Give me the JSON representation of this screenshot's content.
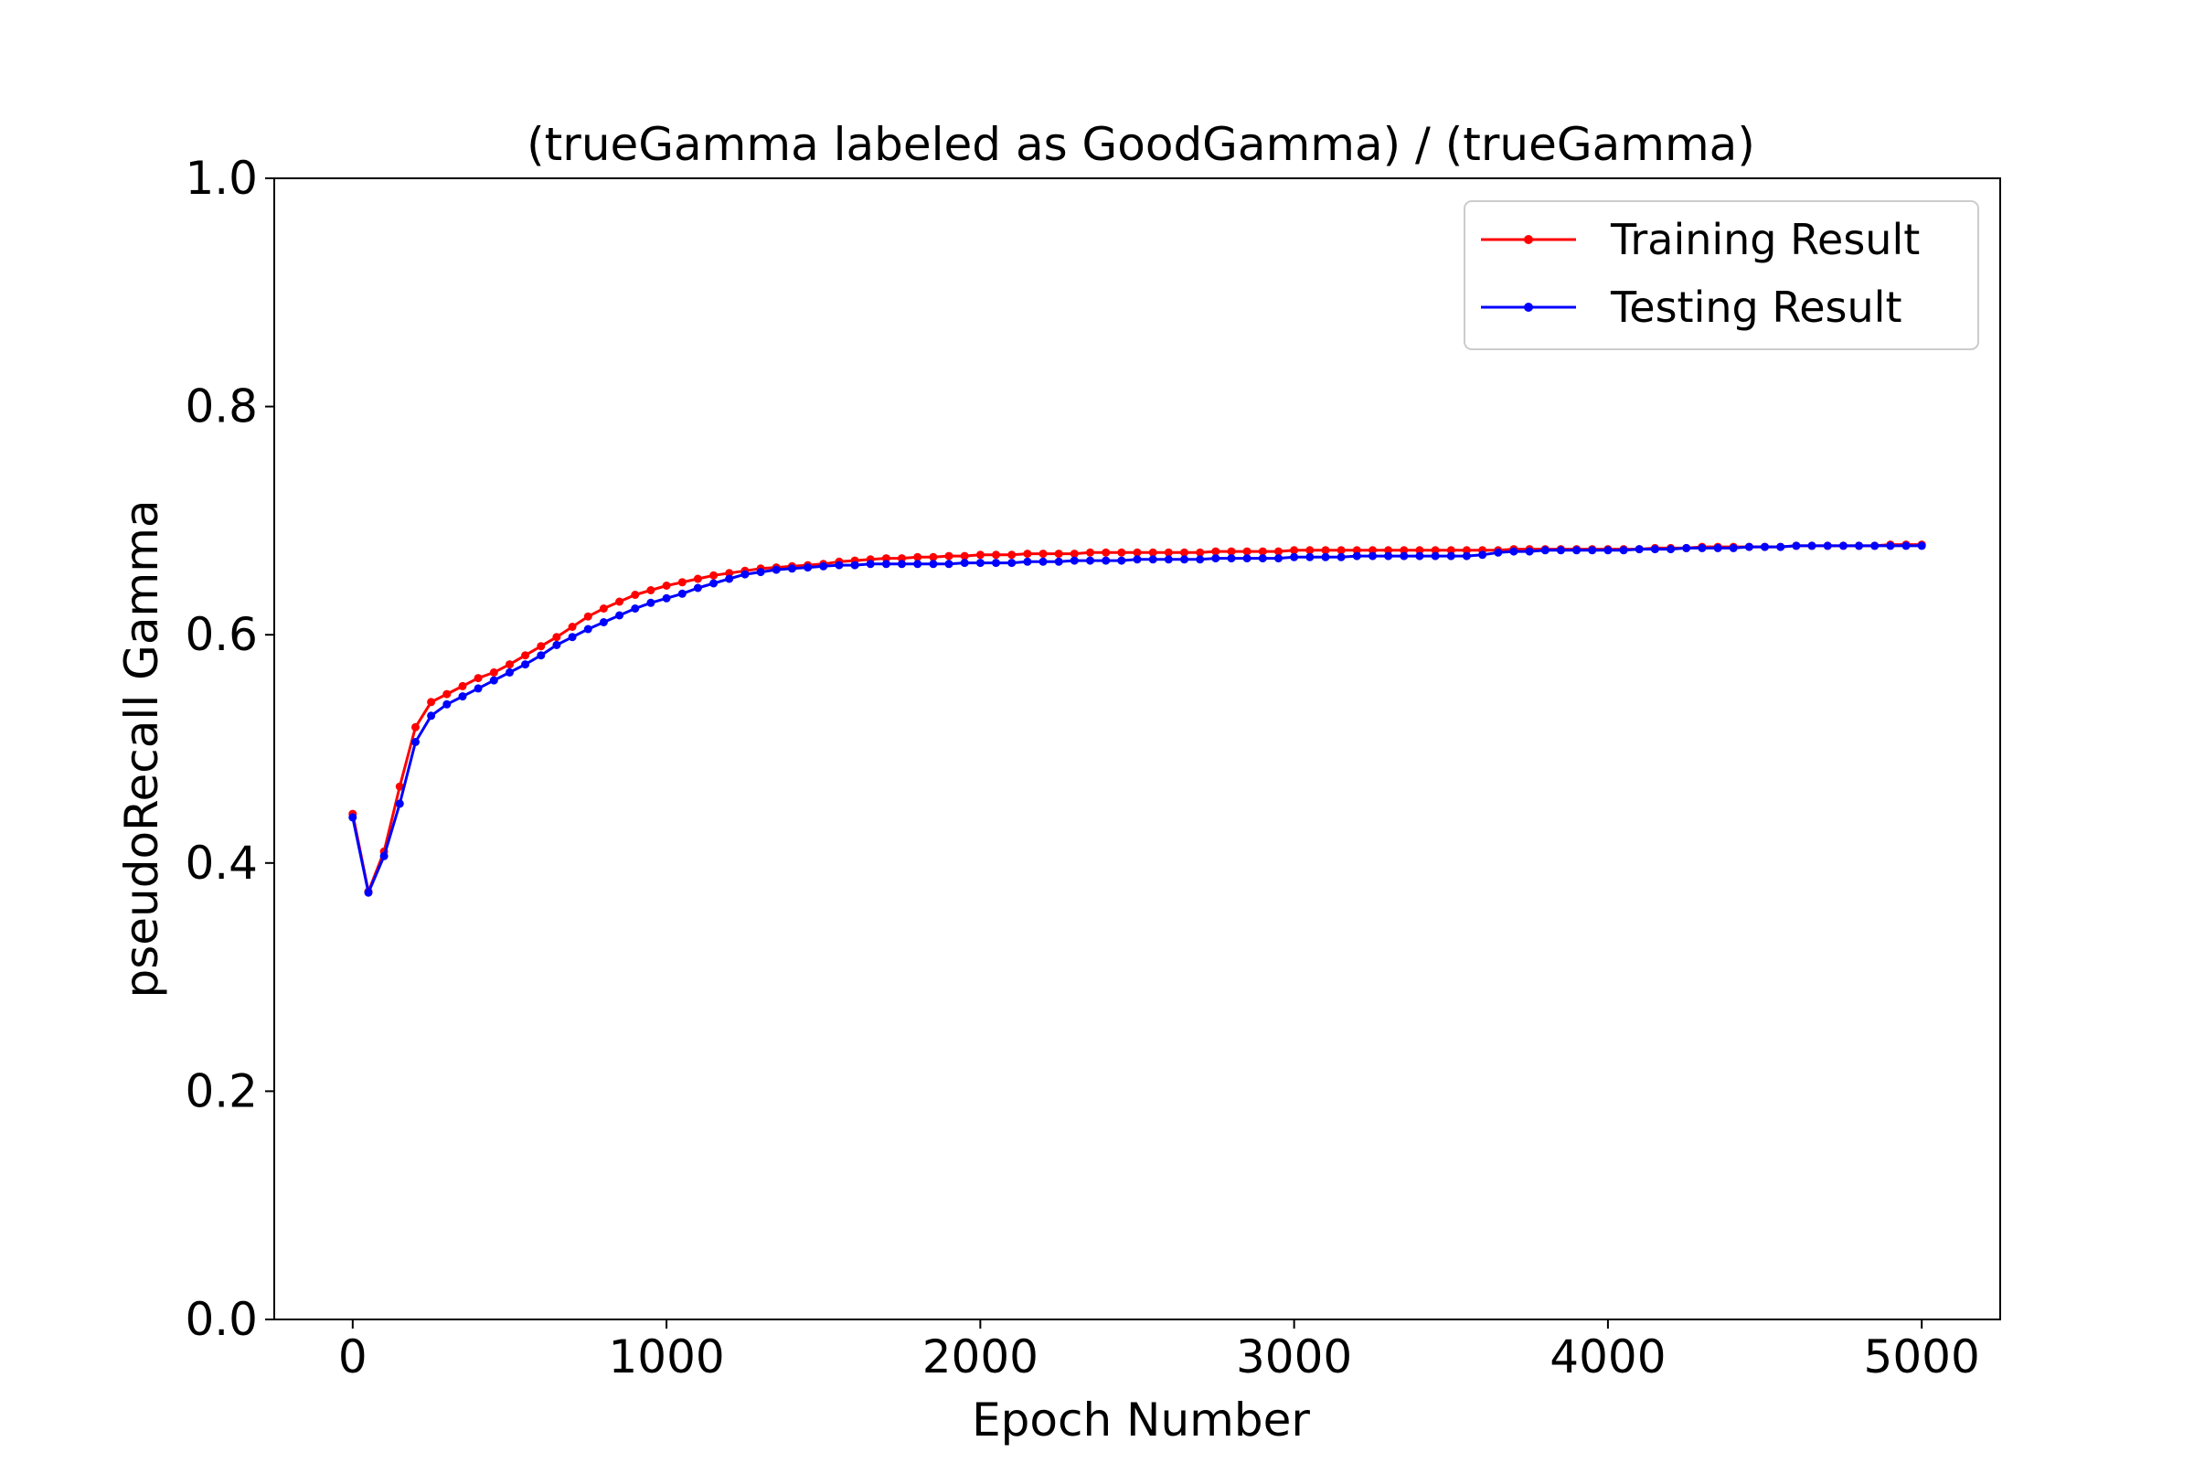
{
  "chart_data": {
    "type": "line",
    "title": "(trueGamma labeled as GoodGamma) / (trueGamma)",
    "xlabel": "Epoch Number",
    "ylabel": "pseudoRecall Gamma",
    "xlim": [
      -250,
      5250
    ],
    "ylim": [
      0.0,
      1.0
    ],
    "xticks": [
      0,
      1000,
      2000,
      3000,
      4000,
      5000
    ],
    "xtick_labels": [
      "0",
      "1000",
      "2000",
      "3000",
      "4000",
      "5000"
    ],
    "yticks": [
      0.0,
      0.2,
      0.4,
      0.6,
      0.8,
      1.0
    ],
    "ytick_labels": [
      "0.0",
      "0.2",
      "0.4",
      "0.6",
      "0.8",
      "1.0"
    ],
    "grid": false,
    "legend_position": "top-right",
    "x": [
      0,
      50,
      100,
      150,
      200,
      250,
      300,
      350,
      400,
      450,
      500,
      550,
      600,
      650,
      700,
      750,
      800,
      850,
      900,
      950,
      1000,
      1050,
      1100,
      1150,
      1200,
      1250,
      1300,
      1350,
      1400,
      1450,
      1500,
      1550,
      1600,
      1650,
      1700,
      1750,
      1800,
      1850,
      1900,
      1950,
      2000,
      2050,
      2100,
      2150,
      2200,
      2250,
      2300,
      2350,
      2400,
      2450,
      2500,
      2550,
      2600,
      2650,
      2700,
      2750,
      2800,
      2850,
      2900,
      2950,
      3000,
      3050,
      3100,
      3150,
      3200,
      3250,
      3300,
      3350,
      3400,
      3450,
      3500,
      3550,
      3600,
      3650,
      3700,
      3750,
      3800,
      3850,
      3900,
      3950,
      4000,
      4050,
      4100,
      4150,
      4200,
      4250,
      4300,
      4350,
      4400,
      4450,
      4500,
      4550,
      4600,
      4650,
      4700,
      4750,
      4800,
      4850,
      4900,
      4950,
      5000
    ],
    "series": [
      {
        "name": "Training Result",
        "color": "#ff0000",
        "values": [
          0.443,
          0.375,
          0.41,
          0.467,
          0.519,
          0.541,
          0.548,
          0.555,
          0.562,
          0.567,
          0.574,
          0.582,
          0.59,
          0.598,
          0.607,
          0.616,
          0.623,
          0.629,
          0.635,
          0.639,
          0.643,
          0.646,
          0.649,
          0.652,
          0.654,
          0.656,
          0.658,
          0.659,
          0.66,
          0.661,
          0.662,
          0.664,
          0.665,
          0.666,
          0.667,
          0.667,
          0.668,
          0.668,
          0.669,
          0.669,
          0.67,
          0.67,
          0.67,
          0.671,
          0.671,
          0.671,
          0.671,
          0.672,
          0.672,
          0.672,
          0.672,
          0.672,
          0.672,
          0.672,
          0.672,
          0.673,
          0.673,
          0.673,
          0.673,
          0.673,
          0.674,
          0.674,
          0.674,
          0.674,
          0.674,
          0.674,
          0.674,
          0.674,
          0.674,
          0.674,
          0.674,
          0.674,
          0.674,
          0.674,
          0.675,
          0.675,
          0.675,
          0.675,
          0.675,
          0.675,
          0.675,
          0.675,
          0.675,
          0.676,
          0.676,
          0.676,
          0.677,
          0.677,
          0.677,
          0.677,
          0.677,
          0.677,
          0.678,
          0.678,
          0.678,
          0.678,
          0.678,
          0.678,
          0.679,
          0.679,
          0.679
        ]
      },
      {
        "name": "Testing Result",
        "color": "#0000ff",
        "values": [
          0.44,
          0.374,
          0.406,
          0.452,
          0.506,
          0.529,
          0.539,
          0.546,
          0.553,
          0.56,
          0.567,
          0.574,
          0.582,
          0.591,
          0.598,
          0.605,
          0.611,
          0.617,
          0.623,
          0.628,
          0.632,
          0.636,
          0.641,
          0.645,
          0.649,
          0.653,
          0.655,
          0.657,
          0.658,
          0.659,
          0.66,
          0.661,
          0.661,
          0.662,
          0.662,
          0.662,
          0.662,
          0.662,
          0.662,
          0.663,
          0.663,
          0.663,
          0.663,
          0.664,
          0.664,
          0.664,
          0.665,
          0.665,
          0.665,
          0.665,
          0.666,
          0.666,
          0.666,
          0.666,
          0.666,
          0.667,
          0.667,
          0.667,
          0.667,
          0.667,
          0.668,
          0.668,
          0.668,
          0.668,
          0.669,
          0.669,
          0.669,
          0.669,
          0.669,
          0.669,
          0.669,
          0.669,
          0.67,
          0.672,
          0.673,
          0.673,
          0.674,
          0.674,
          0.674,
          0.674,
          0.674,
          0.674,
          0.675,
          0.675,
          0.675,
          0.676,
          0.676,
          0.676,
          0.676,
          0.677,
          0.677,
          0.677,
          0.678,
          0.678,
          0.678,
          0.678,
          0.678,
          0.678,
          0.678,
          0.678,
          0.678
        ]
      }
    ]
  }
}
